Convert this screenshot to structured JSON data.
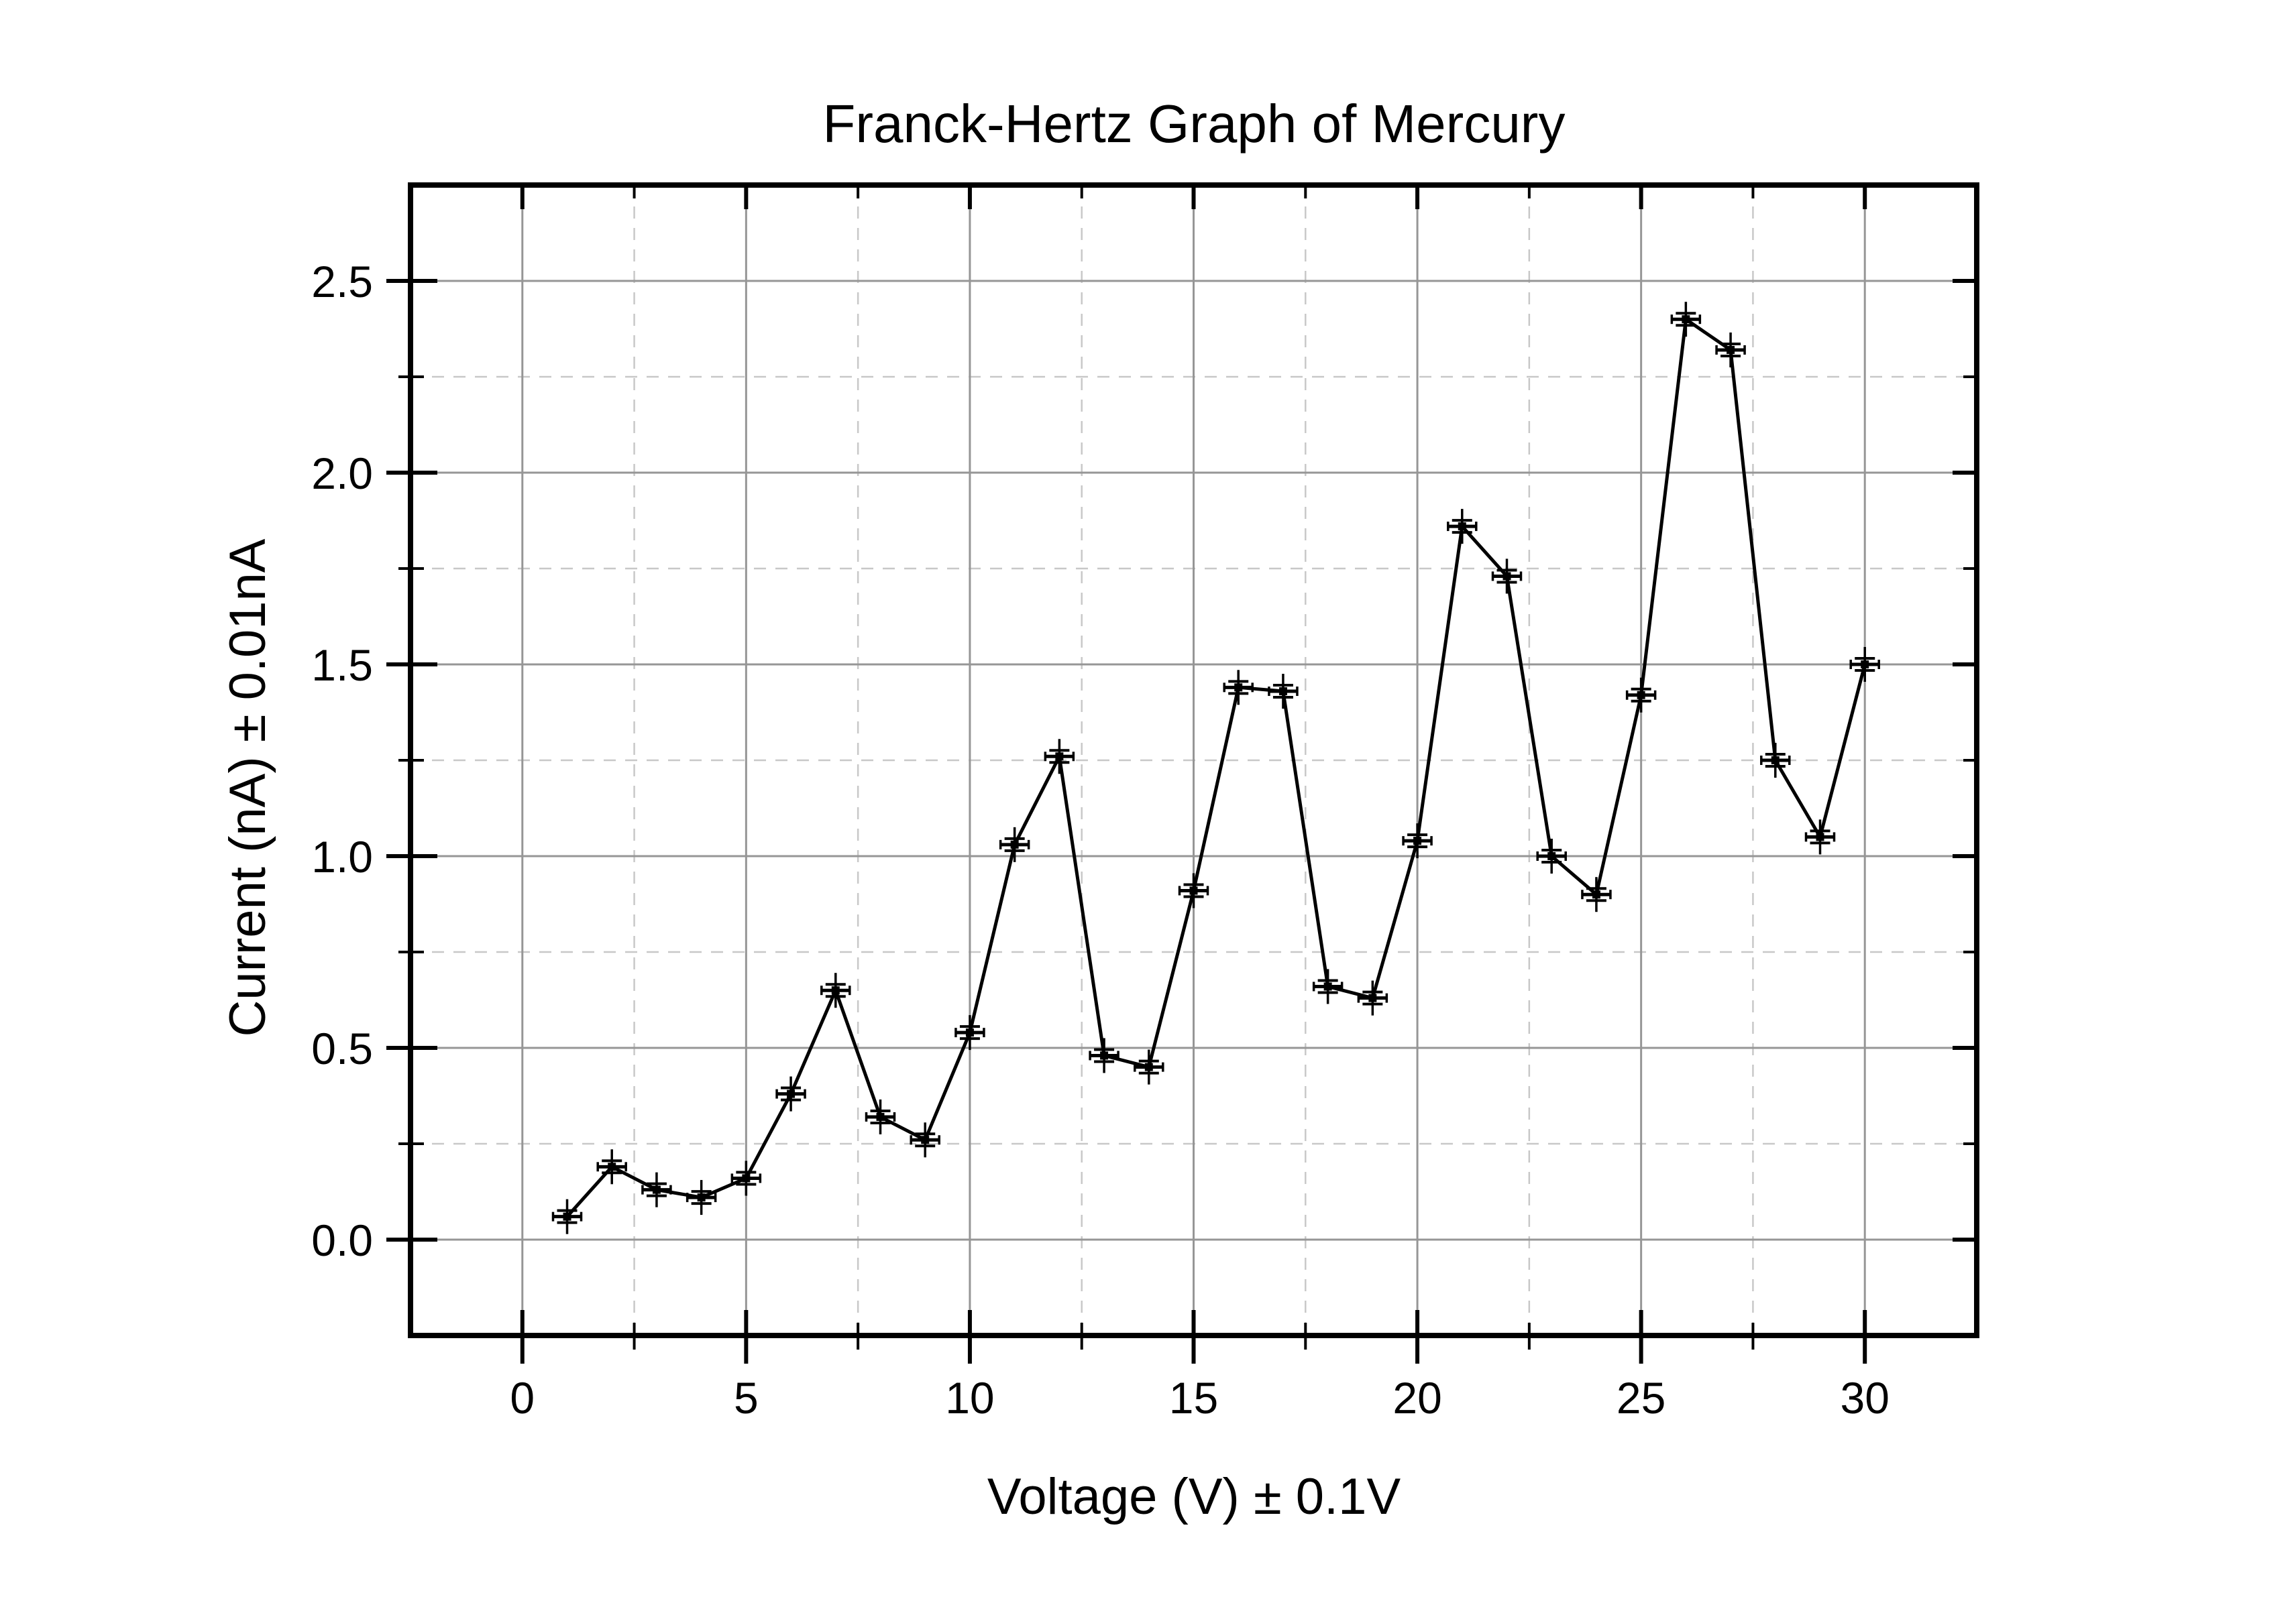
{
  "title": "Franck-Hertz Graph of Mercury",
  "chart_data": {
    "type": "line",
    "title": "Franck-Hertz Graph of Mercury",
    "xlabel": "Voltage (V) ± 0.1V",
    "ylabel": "Current (nA) ± 0.01nA",
    "x": [
      1,
      2,
      3,
      4,
      5,
      6,
      7,
      8,
      9,
      10,
      11,
      12,
      13,
      14,
      15,
      16,
      17,
      18,
      19,
      20,
      21,
      22,
      23,
      24,
      25,
      26,
      27,
      28,
      29,
      30
    ],
    "y": [
      0.06,
      0.19,
      0.13,
      0.11,
      0.16,
      0.38,
      0.65,
      0.32,
      0.26,
      0.54,
      1.03,
      1.26,
      0.48,
      0.45,
      0.91,
      1.44,
      1.43,
      0.66,
      0.63,
      1.04,
      1.86,
      1.73,
      1.0,
      0.9,
      1.42,
      2.4,
      2.32,
      1.25,
      1.05,
      1.5
    ],
    "x_error": 0.1,
    "y_error": 0.01,
    "xlim": [
      -2.5,
      32.5
    ],
    "ylim": [
      -0.25,
      2.75
    ],
    "x_major_ticks": [
      0,
      5,
      10,
      15,
      20,
      25,
      30
    ],
    "x_major_tick_labels": [
      "0",
      "5",
      "10",
      "15",
      "20",
      "25",
      "30"
    ],
    "x_minor_ticks": [
      2.5,
      7.5,
      12.5,
      17.5,
      22.5,
      27.5
    ],
    "y_major_ticks": [
      0.0,
      0.5,
      1.0,
      1.5,
      2.0,
      2.5
    ],
    "y_major_tick_labels": [
      "0.0",
      "0.5",
      "1.0",
      "1.5",
      "2.0",
      "2.5"
    ],
    "y_minor_ticks": [
      0.25,
      0.75,
      1.25,
      1.75,
      2.25
    ],
    "grid": {
      "major_style": "solid",
      "minor_style": "dashed",
      "grid_on": true
    },
    "legend": "none",
    "marker": "square-with-error-bars"
  },
  "style": {
    "background_color": "#ffffff",
    "frame_color": "#000000",
    "line_color": "#000000",
    "marker_color": "#000000",
    "grid_major_color": "#969696",
    "grid_minor_color": "#c8c8c8",
    "text_color": "#000000"
  }
}
